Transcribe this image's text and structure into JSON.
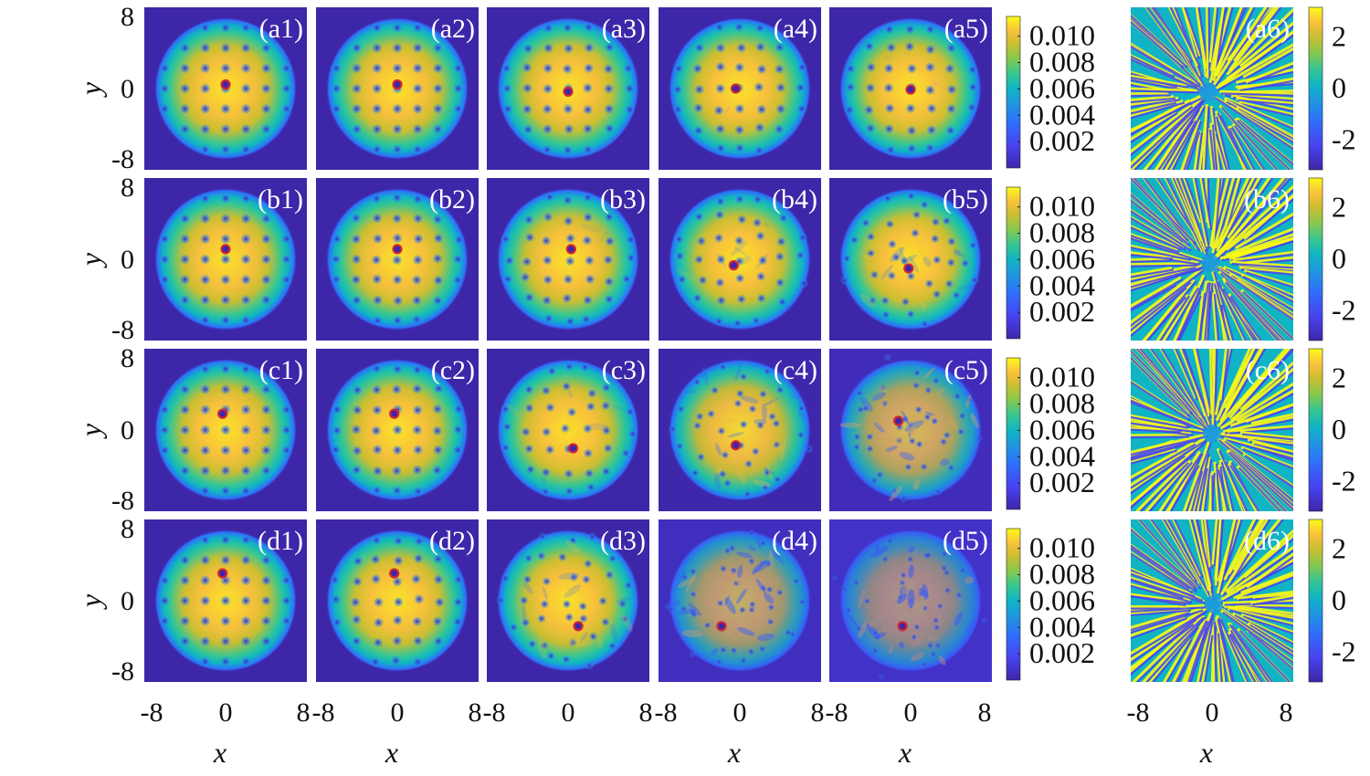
{
  "chart_data": {
    "type": "heatmap",
    "rows": [
      "a",
      "b",
      "c",
      "d"
    ],
    "xlabel": "x",
    "ylabel": "y",
    "xlim": [
      -8,
      8
    ],
    "ylim": [
      -8,
      8
    ],
    "x_ticks": [
      "-8",
      "0",
      "8"
    ],
    "y_ticks": [
      "8",
      "0",
      "-8"
    ],
    "density_panels": [
      [
        {
          "label": "(a1)",
          "vortex": [
            0.0,
            0.4
          ],
          "disorder": 0.0
        },
        {
          "label": "(a2)",
          "vortex": [
            0.0,
            0.4
          ],
          "disorder": 0.0
        },
        {
          "label": "(a3)",
          "vortex": [
            0.0,
            -0.3
          ],
          "disorder": 0.05
        },
        {
          "label": "(a4)",
          "vortex": [
            -0.4,
            0.0
          ],
          "disorder": 0.1
        },
        {
          "label": "(a5)",
          "vortex": [
            0.0,
            -0.1
          ],
          "disorder": 0.1
        }
      ],
      [
        {
          "label": "(b1)",
          "vortex": [
            0.0,
            1.0
          ],
          "disorder": 0.0
        },
        {
          "label": "(b2)",
          "vortex": [
            0.0,
            1.0
          ],
          "disorder": 0.05
        },
        {
          "label": "(b3)",
          "vortex": [
            0.3,
            1.0
          ],
          "disorder": 0.15
        },
        {
          "label": "(b4)",
          "vortex": [
            -0.6,
            -0.6
          ],
          "disorder": 0.25
        },
        {
          "label": "(b5)",
          "vortex": [
            -0.2,
            -0.9
          ],
          "disorder": 0.4
        }
      ],
      [
        {
          "label": "(c1)",
          "vortex": [
            -0.3,
            1.6
          ],
          "disorder": 0.0
        },
        {
          "label": "(c2)",
          "vortex": [
            -0.3,
            1.6
          ],
          "disorder": 0.05
        },
        {
          "label": "(c3)",
          "vortex": [
            0.5,
            -1.8
          ],
          "disorder": 0.25
        },
        {
          "label": "(c4)",
          "vortex": [
            -0.4,
            -1.5
          ],
          "disorder": 0.55
        },
        {
          "label": "(c5)",
          "vortex": [
            -1.2,
            0.9
          ],
          "disorder": 0.75
        }
      ],
      [
        {
          "label": "(d1)",
          "vortex": [
            -0.3,
            2.7
          ],
          "disorder": 0.0
        },
        {
          "label": "(d2)",
          "vortex": [
            -0.3,
            2.7
          ],
          "disorder": 0.1
        },
        {
          "label": "(d3)",
          "vortex": [
            1.0,
            -2.5
          ],
          "disorder": 0.4
        },
        {
          "label": "(d4)",
          "vortex": [
            -1.8,
            -2.5
          ],
          "disorder": 0.85
        },
        {
          "label": "(d5)",
          "vortex": [
            -0.8,
            -2.5
          ],
          "disorder": 1.0
        }
      ]
    ],
    "phase_panels": [
      "(a6)",
      "(b6)",
      "(c6)",
      "(d6)"
    ],
    "density_colorbar": {
      "ticks": [
        0.002,
        0.004,
        0.006,
        0.008,
        0.01
      ],
      "tick_labels": [
        "0.002",
        "0.004",
        "0.006",
        "0.008",
        "0.010"
      ],
      "range": [
        0,
        0.0115
      ]
    },
    "phase_colorbar": {
      "ticks": [
        2,
        0,
        -2
      ],
      "tick_labels": [
        "2",
        "0",
        "-2"
      ],
      "range": [
        -3.14159,
        3.14159
      ]
    },
    "colormap": [
      "#3e26a8",
      "#4743f0",
      "#2f6ffc",
      "#1f96e0",
      "#10b4c4",
      "#35c693",
      "#86c84e",
      "#cbbe31",
      "#f7c03b",
      "#fbe229",
      "#f9fb14"
    ],
    "marker_color": "#d9242b"
  }
}
